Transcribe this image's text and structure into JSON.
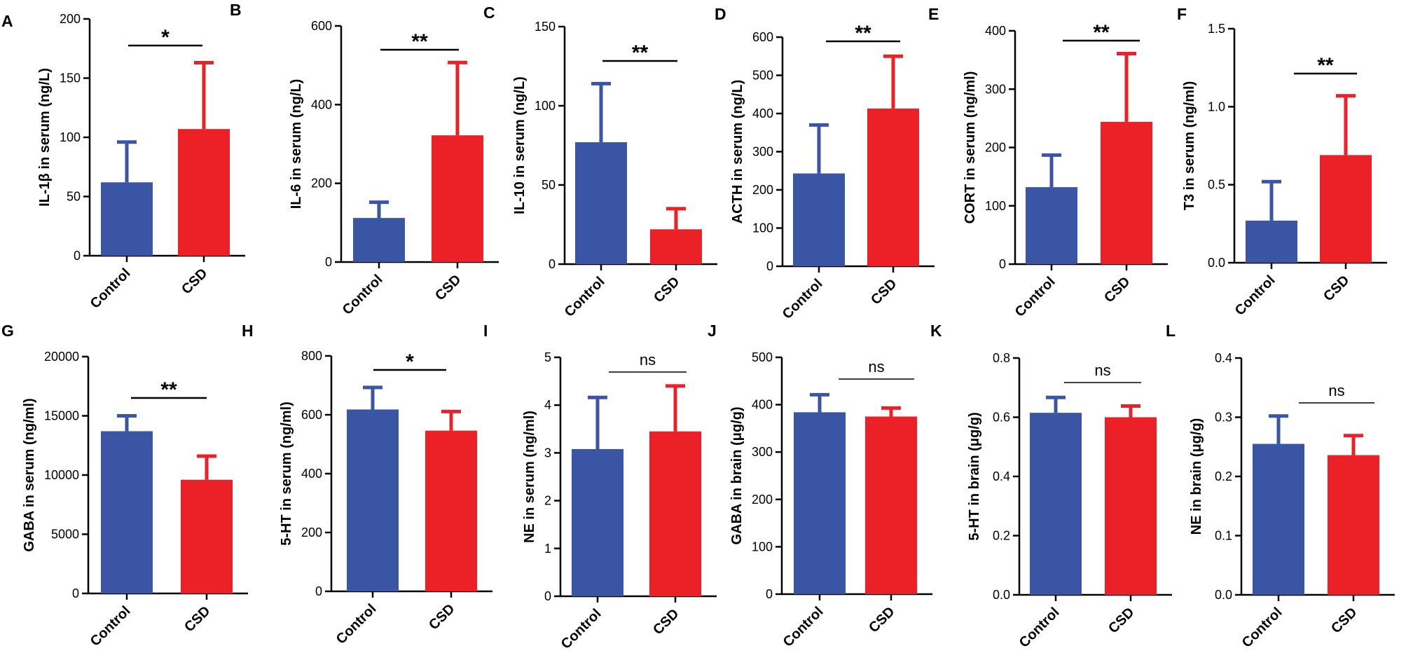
{
  "colors": {
    "control": "#3a55a4",
    "csd": "#ec2027",
    "axis": "#000000"
  },
  "chart_data": [
    {
      "panel": "A",
      "type": "bar",
      "categories": [
        "Control",
        "CSD"
      ],
      "ylabel": "IL-1β in serum (ng/L)",
      "ylim": [
        0,
        200
      ],
      "ticks": [
        "0",
        "50",
        "100",
        "150",
        "200"
      ],
      "values": [
        62,
        107
      ],
      "errors": [
        34,
        56
      ],
      "significance": "*"
    },
    {
      "panel": "B",
      "type": "bar",
      "categories": [
        "Control",
        "CSD"
      ],
      "ylabel": "IL-6 in serum (ng/L)",
      "ylim": [
        0,
        600
      ],
      "ticks": [
        "0",
        "200",
        "400",
        "600"
      ],
      "values": [
        112,
        322
      ],
      "errors": [
        40,
        185
      ],
      "significance": "**"
    },
    {
      "panel": "C",
      "type": "bar",
      "categories": [
        "Control",
        "CSD"
      ],
      "ylabel": "IL-10 in serum (ng/L)",
      "ylim": [
        0,
        150
      ],
      "ticks": [
        "0",
        "50",
        "100",
        "150"
      ],
      "values": [
        77,
        22
      ],
      "errors": [
        37,
        13
      ],
      "significance": "**"
    },
    {
      "panel": "D",
      "type": "bar",
      "categories": [
        "Control",
        "CSD"
      ],
      "ylabel": "ACTH in serum (ng/L)",
      "ylim": [
        0,
        600
      ],
      "ticks": [
        "0",
        "100",
        "200",
        "300",
        "400",
        "500",
        "600"
      ],
      "values": [
        243,
        413
      ],
      "errors": [
        127,
        137
      ],
      "significance": "**"
    },
    {
      "panel": "E",
      "type": "bar",
      "categories": [
        "Control",
        "CSD"
      ],
      "ylabel": "CORT in serum (ng/ml)",
      "ylim": [
        0,
        400
      ],
      "ticks": [
        "0",
        "100",
        "200",
        "300",
        "400"
      ],
      "values": [
        132,
        244
      ],
      "errors": [
        55,
        117
      ],
      "significance": "**"
    },
    {
      "panel": "F",
      "type": "bar",
      "categories": [
        "Control",
        "CSD"
      ],
      "ylabel": "T3 in serum (ng/ml)",
      "ylim": [
        0,
        1.5
      ],
      "ticks": [
        "0.0",
        "0.5",
        "1.0",
        "1.5"
      ],
      "values": [
        0.27,
        0.69
      ],
      "errors": [
        0.25,
        0.38
      ],
      "significance": "**"
    },
    {
      "panel": "G",
      "type": "bar",
      "categories": [
        "Control",
        "CSD"
      ],
      "ylabel": "GABA in serum (ng/ml)",
      "ylim": [
        0,
        20000
      ],
      "ticks": [
        "0",
        "5000",
        "10000",
        "15000",
        "20000"
      ],
      "values": [
        13700,
        9600
      ],
      "errors": [
        1300,
        2000
      ],
      "significance": "**"
    },
    {
      "panel": "H",
      "type": "bar",
      "categories": [
        "Control",
        "CSD"
      ],
      "ylabel": "5-HT in serum (ng/ml)",
      "ylim": [
        0,
        800
      ],
      "ticks": [
        "0",
        "200",
        "400",
        "600",
        "800"
      ],
      "values": [
        618,
        546
      ],
      "errors": [
        75,
        65
      ],
      "significance": "*"
    },
    {
      "panel": "I",
      "type": "bar",
      "categories": [
        "Control",
        "CSD"
      ],
      "ylabel": "NE in serum (ng/ml)",
      "ylim": [
        0,
        5
      ],
      "ticks": [
        "0",
        "1",
        "2",
        "3",
        "4",
        "5"
      ],
      "values": [
        3.08,
        3.45
      ],
      "errors": [
        1.08,
        0.95
      ],
      "significance": "ns"
    },
    {
      "panel": "J",
      "type": "bar",
      "categories": [
        "Control",
        "CSD"
      ],
      "ylabel": "GABA in brain (μg/g)",
      "ylim": [
        0,
        500
      ],
      "ticks": [
        "0",
        "100",
        "200",
        "300",
        "400",
        "500"
      ],
      "values": [
        384,
        375
      ],
      "errors": [
        37,
        18
      ],
      "significance": "ns"
    },
    {
      "panel": "K",
      "type": "bar",
      "categories": [
        "Control",
        "CSD"
      ],
      "ylabel": "5-HT in brain (μg/g)",
      "ylim": [
        0,
        0.8
      ],
      "ticks": [
        "0.0",
        "0.2",
        "0.4",
        "0.6",
        "0.8"
      ],
      "values": [
        0.615,
        0.6
      ],
      "errors": [
        0.052,
        0.038
      ],
      "significance": "ns"
    },
    {
      "panel": "L",
      "type": "bar",
      "categories": [
        "Control",
        "CSD"
      ],
      "ylabel": "NE in brain (μg/g)",
      "ylim": [
        0,
        0.4
      ],
      "ticks": [
        "0.0",
        "0.1",
        "0.2",
        "0.3",
        "0.4"
      ],
      "values": [
        0.255,
        0.236
      ],
      "errors": [
        0.047,
        0.033
      ],
      "significance": "ns"
    }
  ]
}
